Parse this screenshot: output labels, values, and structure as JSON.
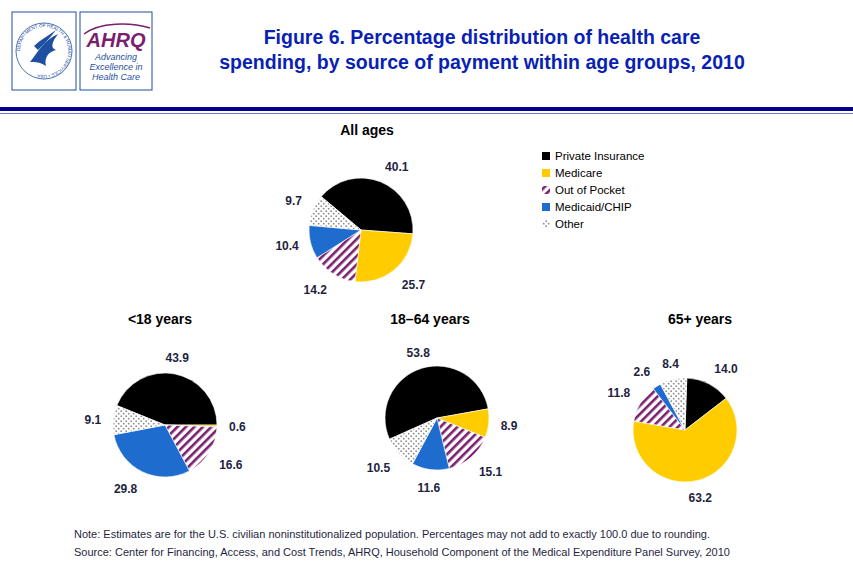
{
  "header": {
    "logo_hhs": "DEPARTMENT OF HEALTH & HUMAN SERVICES • USA",
    "logo_ahrq": "AHRQ",
    "logo_tagline": [
      "Advancing",
      "Excellence in",
      "Health Care"
    ],
    "title_lines": [
      "Figure 6. Percentage distribution of health care",
      "spending, by source of payment within age groups, 2010"
    ]
  },
  "chart_data": [
    {
      "type": "pie",
      "title": "All ages",
      "categories": [
        "Private Insurance",
        "Medicare",
        "Out of Pocket",
        "Medicaid/CHIP",
        "Other"
      ],
      "values": [
        40.1,
        25.7,
        14.2,
        10.4,
        9.7
      ],
      "colors": [
        "#000000",
        "#ffcc00",
        "#7a1f6e",
        "#1f6ccf",
        "#8c8c8c"
      ],
      "data_labels": true,
      "legend": "right"
    },
    {
      "type": "pie",
      "title": "<18 years",
      "categories": [
        "Private Insurance",
        "Medicare",
        "Out of Pocket",
        "Medicaid/CHIP",
        "Other"
      ],
      "values": [
        43.9,
        0.6,
        16.6,
        29.8,
        9.1
      ],
      "colors": [
        "#000000",
        "#ffcc00",
        "#7a1f6e",
        "#1f6ccf",
        "#8c8c8c"
      ],
      "data_labels": true
    },
    {
      "type": "pie",
      "title": "18–64 years",
      "categories": [
        "Private Insurance",
        "Medicare",
        "Out of Pocket",
        "Medicaid/CHIP",
        "Other"
      ],
      "values": [
        53.8,
        8.9,
        15.1,
        11.6,
        10.5
      ],
      "colors": [
        "#000000",
        "#ffcc00",
        "#7a1f6e",
        "#1f6ccf",
        "#8c8c8c"
      ],
      "data_labels": true
    },
    {
      "type": "pie",
      "title": "65+ years",
      "categories": [
        "Private Insurance",
        "Medicare",
        "Out of Pocket",
        "Medicaid/CHIP",
        "Other"
      ],
      "values": [
        14.0,
        63.2,
        11.8,
        2.6,
        8.4
      ],
      "value_labels": [
        "14.0",
        "63.2",
        "11.8",
        "2.6",
        "8.4"
      ],
      "colors": [
        "#000000",
        "#ffcc00",
        "#7a1f6e",
        "#1f6ccf",
        "#8c8c8c"
      ],
      "data_labels": true
    }
  ],
  "footer": {
    "note": "Note: Estimates are for the U.S. civilian noninstitutionalized population. Percentages may not add to exactly 100.0 due to rounding.",
    "source": "Source: Center for Financing, Access, and Cost Trends, AHRQ, Household Component of the Medical Expenditure Panel Survey,  2010"
  }
}
